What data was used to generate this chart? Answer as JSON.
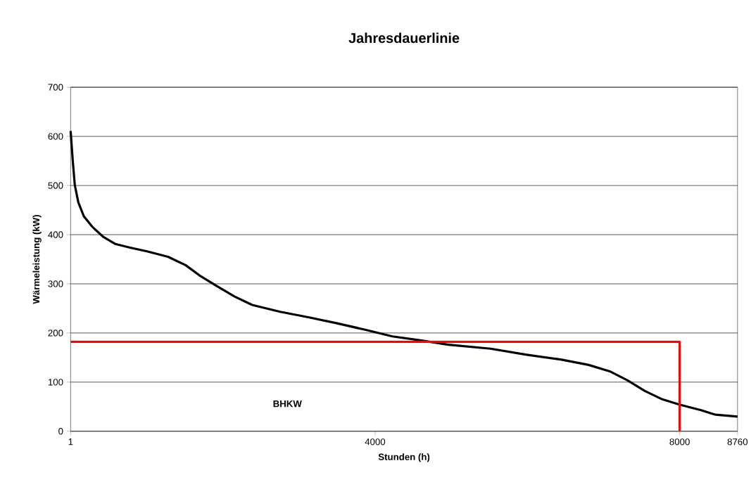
{
  "chart_data": {
    "type": "line",
    "title": "Jahresdauerlinie",
    "xlabel": "Stunden (h)",
    "ylabel": "Wärmeleistung (kW)",
    "xlim": [
      1,
      8760
    ],
    "xticks": [
      1,
      4000,
      8000,
      8760
    ],
    "ylim": [
      0,
      700
    ],
    "yticks": [
      0,
      100,
      200,
      300,
      400,
      500,
      600,
      700
    ],
    "grid": "y",
    "series": [
      {
        "color": "#000000",
        "x": [
          1,
          29,
          56,
          102,
          176,
          286,
          434,
          590,
          775,
          1005,
          1281,
          1511,
          1695,
          1925,
          2156,
          2386,
          2754,
          3122,
          3490,
          3859,
          4227,
          4595,
          4963,
          5516,
          5976,
          6437,
          6805,
          7081,
          7312,
          7542,
          7772,
          8003,
          8279,
          8463,
          8760
        ],
        "values": [
          611,
          551,
          501,
          466,
          437,
          416,
          395,
          381,
          374,
          366,
          355,
          338,
          317,
          295,
          274,
          257,
          243,
          232,
          220,
          207,
          193,
          185,
          176,
          168,
          156,
          146,
          135,
          122,
          104,
          82,
          65,
          54,
          43,
          34,
          30
        ]
      },
      {
        "color": "#ff0000",
        "x": [
          1,
          8000,
          8000
        ],
        "values": [
          182,
          182,
          0
        ]
      }
    ],
    "annotations": [
      "BHKW"
    ]
  }
}
